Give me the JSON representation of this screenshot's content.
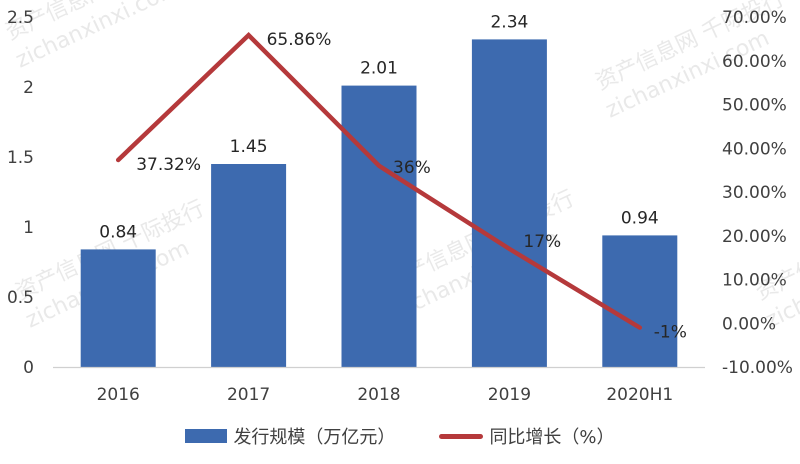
{
  "chart_data": {
    "type": "bar+line",
    "title": "",
    "categories": [
      "2016",
      "2017",
      "2018",
      "2019",
      "2020H1"
    ],
    "series": [
      {
        "name": "发行规模（万亿元）",
        "type": "bar",
        "axis": "left",
        "color": "#3D6AAF",
        "values": [
          0.84,
          1.45,
          2.01,
          2.34,
          0.94
        ],
        "labels": [
          "0.84",
          "1.45",
          "2.01",
          "2.34",
          "0.94"
        ]
      },
      {
        "name": "同比增长（%）",
        "type": "line",
        "axis": "right",
        "color": "#B5393B",
        "values": [
          37.32,
          65.86,
          36,
          17,
          -1
        ],
        "labels": [
          "37.32%",
          "65.86%",
          "36%",
          "17%",
          "-1%"
        ]
      }
    ],
    "left_axis": {
      "ylim": [
        0,
        2.5
      ],
      "ticks": [
        "0",
        "0.5",
        "1",
        "1.5",
        "2",
        "2.5"
      ]
    },
    "right_axis": {
      "ylim": [
        -10,
        70
      ],
      "ticks": [
        "-10.00%",
        "0.00%",
        "10.00%",
        "20.00%",
        "30.00%",
        "40.00%",
        "50.00%",
        "60.00%",
        "70.00%"
      ]
    },
    "grid": false,
    "legend_position": "bottom"
  },
  "legend": {
    "bar_label": "发行规模（万亿元）",
    "line_label": "同比增长（%）"
  },
  "watermark": {
    "cn": "资产信息网 千际投行",
    "en": "zichanxinxi.com"
  }
}
